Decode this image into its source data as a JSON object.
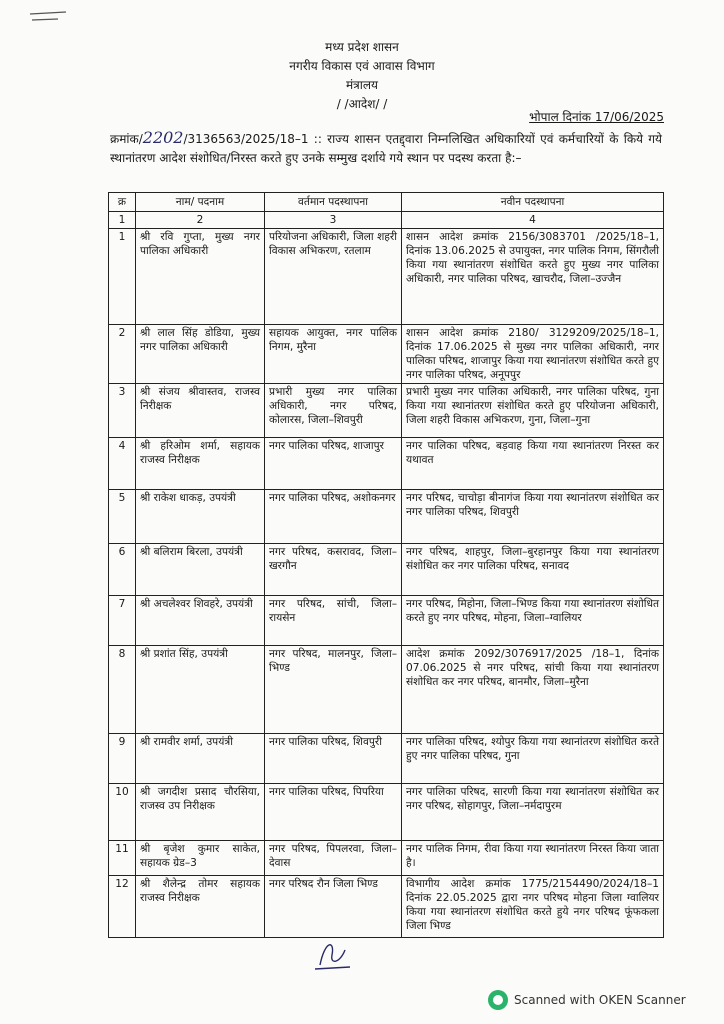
{
  "header": {
    "line1": "मध्य प्रदेश शासन",
    "line2": "नगरीय विकास एवं आवास विभाग",
    "line3": "मंत्रालय",
    "line4": "/ /आदेश/ /",
    "date": "भोपाल दिनांक 17/06/2025"
  },
  "intro": {
    "prefix": "क्रमांक/",
    "handwritten_number": "2202",
    "text": "/3136563/2025/18–1 :: राज्य शासन एतद्द्वारा निम्नलिखित अधिकारियों एवं कर्मचारियों के किये गये स्थानांतरण आदेश संशोधित/निरस्त करते हुए उनके सम्मुख दर्शाये गये स्थान पर पदस्थ करता है:–"
  },
  "table": {
    "headers": [
      "क्र",
      "नाम/ पदनाम",
      "वर्तमान पदस्थापना",
      "नवीन पदस्थापना"
    ],
    "index_row": [
      "1",
      "2",
      "3",
      "4"
    ],
    "rows": [
      [
        "1",
        "श्री रवि गुप्ता, मुख्य नगर पालिका अधिकारी",
        "परियोजना अधिकारी, जिला शहरी विकास अभिकरण, रतलाम",
        "शासन आदेश क्रमांक 2156/3083701 /2025/18–1, दिनांक 13.06.2025 से उपायुक्त, नगर पालिक निगम, सिंगरौली किया गया स्थानांतरण संशोधित करते हुए मुख्य नगर पालिका अधिकारी, नगर पालिका परिषद, खाचरौद, जिला–उज्जैन"
      ],
      [
        "2",
        "श्री लाल सिंह डोडिया, मुख्य नगर पालिका अधिकारी",
        "सहायक आयुक्त, नगर पालिक निगम, मुरैना",
        "शासन आदेश क्रमांक 2180/ 3129209/2025/18–1, दिनांक 17.06.2025 से मुख्य नगर पालिका अधिकारी, नगर पालिका परिषद, शाजापुर किया गया स्थानांतरण संशोधित करते हुए नगर पालिका परिषद, अनूपपुर"
      ],
      [
        "3",
        "श्री संजय श्रीवास्तव, राजस्व निरीक्षक",
        "प्रभारी मुख्य नगर पालिका अधिकारी, नगर परिषद, कोलारस, जिला–शिवपुरी",
        "प्रभारी मुख्य नगर पालिका अधिकारी, नगर पालिका परिषद, गुना किया गया स्थानांतरण संशोधित करते हुए परियोजना अधिकारी, जिला शहरी विकास अभिकरण, गुना, जिला–गुना"
      ],
      [
        "4",
        "श्री हरिओम शर्मा, सहायक राजस्व निरीक्षक",
        "नगर पालिका परिषद, शाजापुर",
        "नगर पालिका परिषद, बड़वाह किया गया स्थानांतरण निरस्त कर यथावत"
      ],
      [
        "5",
        "श्री राकेश धाकड़, उपयंत्री",
        "नगर पालिका परिषद, अशोकनगर",
        "नगर परिषद, चाचोड़ा बीनागंज किया गया स्थानांतरण संशोधित कर नगर पालिका परिषद, शिवपुरी"
      ],
      [
        "6",
        "श्री बलिराम बिरला, उपयंत्री",
        "नगर परिषद, कसरावद, जिला–खरगौन",
        "नगर परिषद, शाहपुर, जिला–बुरहानपुर किया गया स्थानांतरण संशोधित कर नगर पालिका परिषद, सनावद"
      ],
      [
        "7",
        "श्री अचलेश्वर शिवहरे, उपयंत्री",
        "नगर परिषद, सांची, जिला–रायसेन",
        "नगर परिषद, मिहोना, जिला–भिण्ड किया गया स्थानांतरण संशोधित करते हुए नगर परिषद, मोहना, जिला–ग्वालियर"
      ],
      [
        "8",
        "श्री प्रशांत सिंह, उपयंत्री",
        "नगर परिषद, मालनपुर, जिला–भिण्ड",
        "आदेश क्रमांक 2092/3076917/2025 /18–1, दिनांक 07.06.2025 से नगर परिषद, सांची किया गया स्थानांतरण संशोधित कर नगर परिषद, बानमौर, जिला–मुरैना"
      ],
      [
        "9",
        "श्री रामवीर शर्मा, उपयंत्री",
        "नगर पालिका परिषद, शिवपुरी",
        "नगर पालिका परिषद, श्योपुर किया गया स्थानांतरण संशोधित करते हुए नगर पालिका परिषद, गुना"
      ],
      [
        "10",
        "श्री जगदीश प्रसाद चौरसिया, राजस्व उप निरीक्षक",
        "नगर पालिका परिषद, पिपरिया",
        "नगर पालिका परिषद, सारणी किया गया स्थानांतरण संशोधित कर नगर परिषद, सोहागपुर, जिला–नर्मदापुरम"
      ],
      [
        "11",
        "श्री बृजेश कुमार साकेत, सहायक ग्रेड–3",
        "नगर परिषद, पिपलरवा, जिला–देवास",
        "नगर पालिक निगम, रीवा किया गया स्थानांतरण निरस्त किया जाता है।"
      ],
      [
        "12",
        "श्री शैलेन्द्र तोमर सहायक राजस्व निरीक्षक",
        "नगर परिषद रौन जिला भिण्ड",
        "विभागीय आदेश क्रमांक 1775/2154490/2024/18–1 दिनांक 22.05.2025 द्वारा नगर परिषद मोहना जिला ग्वालियर किया गया स्थानांतरण संशोधित करते हुये नगर परिषद फूंफकला जिला भिण्ड"
      ]
    ]
  },
  "footer": {
    "scanner_text": "Scanned with OKEN Scanner",
    "logo_color": "#29b36b"
  }
}
